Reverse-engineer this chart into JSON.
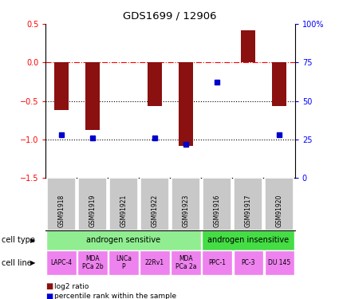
{
  "title": "GDS1699 / 12906",
  "samples": [
    "GSM91918",
    "GSM91919",
    "GSM91921",
    "GSM91922",
    "GSM91923",
    "GSM91916",
    "GSM91917",
    "GSM91920"
  ],
  "log2_ratio": [
    -0.62,
    -0.88,
    0.0,
    -0.57,
    -1.08,
    0.0,
    0.42,
    -0.57
  ],
  "percentile_rank": [
    28,
    26,
    0,
    26,
    22,
    62,
    0,
    28
  ],
  "show_bar": [
    true,
    true,
    false,
    true,
    true,
    false,
    true,
    true
  ],
  "show_dot": [
    true,
    true,
    false,
    true,
    true,
    true,
    false,
    true
  ],
  "cell_type": [
    {
      "label": "androgen sensitive",
      "start": 0,
      "end": 5,
      "color": "#90EE90"
    },
    {
      "label": "androgen insensitive",
      "start": 5,
      "end": 8,
      "color": "#44DD44"
    }
  ],
  "cell_line": [
    {
      "label": "LAPC-4",
      "start": 0,
      "end": 1,
      "color": "#EE82EE"
    },
    {
      "label": "MDA\nPCa 2b",
      "start": 1,
      "end": 2,
      "color": "#EE82EE"
    },
    {
      "label": "LNCa\nP",
      "start": 2,
      "end": 3,
      "color": "#EE82EE"
    },
    {
      "label": "22Rv1",
      "start": 3,
      "end": 4,
      "color": "#EE82EE"
    },
    {
      "label": "MDA\nPCa 2a",
      "start": 4,
      "end": 5,
      "color": "#EE82EE"
    },
    {
      "label": "PPC-1",
      "start": 5,
      "end": 6,
      "color": "#EE82EE"
    },
    {
      "label": "PC-3",
      "start": 6,
      "end": 7,
      "color": "#EE82EE"
    },
    {
      "label": "DU 145",
      "start": 7,
      "end": 8,
      "color": "#EE82EE"
    }
  ],
  "ylim_left": [
    -1.5,
    0.5
  ],
  "ylim_right": [
    0,
    100
  ],
  "yticks_left": [
    -1.5,
    -1.0,
    -0.5,
    0.0,
    0.5
  ],
  "yticks_right": [
    0,
    25,
    50,
    75,
    100
  ],
  "bar_color": "#8B1010",
  "dot_color": "#0000CC",
  "hline_0": 0.0,
  "hline_m05": -0.5,
  "hline_m1": -1.0,
  "sample_box_color": "#C8C8C8",
  "legend_bar_label": "log2 ratio",
  "legend_dot_label": "percentile rank within the sample"
}
